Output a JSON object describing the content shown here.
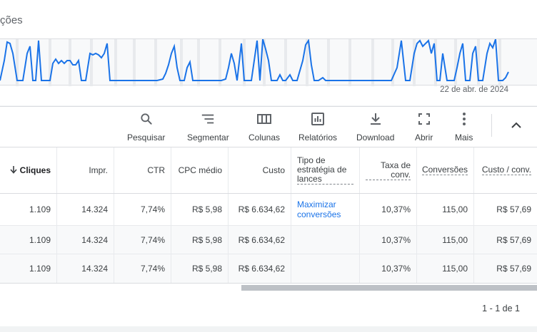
{
  "panel": {
    "title": "ções",
    "date_label": "22 de abr. de 2024"
  },
  "toolbar": {
    "search": "Pesquisar",
    "segment": "Segmentar",
    "columns": "Colunas",
    "reports": "Relatórios",
    "download": "Download",
    "expand": "Abrir",
    "more": "Mais"
  },
  "table": {
    "headers": {
      "clicks": "Cliques",
      "impr": "Impr.",
      "ctr": "CTR",
      "cpc": "CPC médio",
      "cost": "Custo",
      "bid_strategy": "Tipo de estratégia de lances",
      "conv_rate": "Taxa de conv.",
      "conversions": "Conversões",
      "cost_per_conv": "Custo / conv."
    },
    "rows": [
      {
        "clicks": "1.109",
        "impr": "14.324",
        "ctr": "7,74%",
        "cpc": "R$ 5,98",
        "cost": "R$ 6.634,62",
        "bid_strategy": "Maximizar conversões",
        "conv_rate": "10,37%",
        "conversions": "115,00",
        "cost_per_conv": "R$ 57,69"
      },
      {
        "clicks": "1.109",
        "impr": "14.324",
        "ctr": "7,74%",
        "cpc": "R$ 5,98",
        "cost": "R$ 6.634,62",
        "bid_strategy": "",
        "conv_rate": "10,37%",
        "conversions": "115,00",
        "cost_per_conv": "R$ 57,69"
      },
      {
        "clicks": "1.109",
        "impr": "14.324",
        "ctr": "7,74%",
        "cpc": "R$ 5,98",
        "cost": "R$ 6.634,62",
        "bid_strategy": "",
        "conv_rate": "10,37%",
        "conversions": "115,00",
        "cost_per_conv": "R$ 57,69"
      }
    ]
  },
  "pagination": "1 - 1 de 1",
  "colors": {
    "line": "#1a73e8",
    "link": "#1a73e8"
  }
}
